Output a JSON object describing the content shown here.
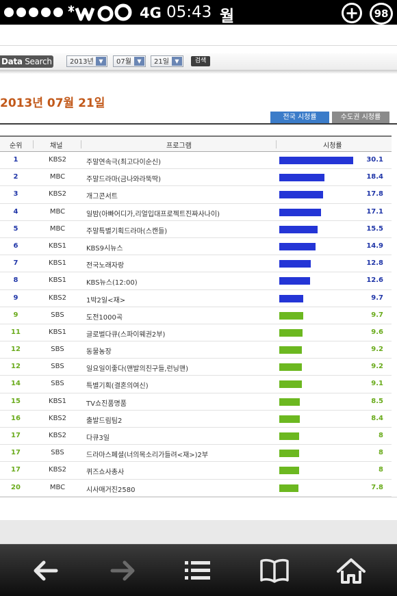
{
  "status_bar": {
    "network": "4G",
    "time": "05:43",
    "extra_char": "월",
    "badge_count": "98"
  },
  "search": {
    "logo_bold": "Data",
    "logo_rest": " Search",
    "year": "2013년",
    "month": "07월",
    "day": "21일",
    "button": "검색"
  },
  "page_title": "2013년 07월 21일",
  "tabs": {
    "national": "전국 시청률",
    "capital": "수도권 시청률"
  },
  "table": {
    "headers": {
      "rank": "순위",
      "channel": "채널",
      "program": "프로그램",
      "rating": "시청률"
    },
    "rows": [
      {
        "rank": "1",
        "channel": "KBS2",
        "program": "주말연속극(최고다이순신)",
        "rating": "30.1",
        "value": 30.1,
        "color": "blue"
      },
      {
        "rank": "2",
        "channel": "MBC",
        "program": "주말드라마(금나와라뚝딱)",
        "rating": "18.4",
        "value": 18.4,
        "color": "blue"
      },
      {
        "rank": "3",
        "channel": "KBS2",
        "program": "개그콘서트",
        "rating": "17.8",
        "value": 17.8,
        "color": "blue"
      },
      {
        "rank": "4",
        "channel": "MBC",
        "program": "일밤(아빠어디가,리얼입대프로젝트진짜사나이)",
        "rating": "17.1",
        "value": 17.1,
        "color": "blue"
      },
      {
        "rank": "5",
        "channel": "MBC",
        "program": "주말특별기획드라마(스캔들)",
        "rating": "15.5",
        "value": 15.5,
        "color": "blue"
      },
      {
        "rank": "6",
        "channel": "KBS1",
        "program": "KBS9시뉴스",
        "rating": "14.9",
        "value": 14.9,
        "color": "blue"
      },
      {
        "rank": "7",
        "channel": "KBS1",
        "program": "전국노래자랑",
        "rating": "12.8",
        "value": 12.8,
        "color": "blue"
      },
      {
        "rank": "8",
        "channel": "KBS1",
        "program": "KBS뉴스(12:00)",
        "rating": "12.6",
        "value": 12.6,
        "color": "blue"
      },
      {
        "rank": "9",
        "channel": "KBS2",
        "program": "1박2일<재>",
        "rating": "9.7",
        "value": 9.7,
        "color": "blue"
      },
      {
        "rank": "9",
        "channel": "SBS",
        "program": "도전1000곡",
        "rating": "9.7",
        "value": 9.7,
        "color": "green"
      },
      {
        "rank": "11",
        "channel": "KBS1",
        "program": "글로벌다큐(스파이웨권2부)",
        "rating": "9.6",
        "value": 9.6,
        "color": "green"
      },
      {
        "rank": "12",
        "channel": "SBS",
        "program": "동물농장",
        "rating": "9.2",
        "value": 9.2,
        "color": "green"
      },
      {
        "rank": "12",
        "channel": "SBS",
        "program": "일요일이좋다(맨발의친구들,런닝맨)",
        "rating": "9.2",
        "value": 9.2,
        "color": "green"
      },
      {
        "rank": "14",
        "channel": "SBS",
        "program": "특별기획(결혼의여신)",
        "rating": "9.1",
        "value": 9.1,
        "color": "green"
      },
      {
        "rank": "15",
        "channel": "KBS1",
        "program": "TV쇼진품명품",
        "rating": "8.5",
        "value": 8.5,
        "color": "green"
      },
      {
        "rank": "16",
        "channel": "KBS2",
        "program": "출발드림팀2",
        "rating": "8.4",
        "value": 8.4,
        "color": "green"
      },
      {
        "rank": "17",
        "channel": "KBS2",
        "program": "다큐3일",
        "rating": "8",
        "value": 8,
        "color": "green"
      },
      {
        "rank": "17",
        "channel": "SBS",
        "program": "드라마스페셜(너의목소리가들려<재>)2부",
        "rating": "8",
        "value": 8,
        "color": "green"
      },
      {
        "rank": "17",
        "channel": "KBS2",
        "program": "퀴즈쇼사총사",
        "rating": "8",
        "value": 8,
        "color": "green"
      },
      {
        "rank": "20",
        "channel": "MBC",
        "program": "시사매거진2580",
        "rating": "7.8",
        "value": 7.8,
        "color": "green"
      }
    ]
  },
  "colors": {
    "blue_bar": "#2435d6",
    "green_bar": "#6cb820",
    "title_orange": "#c2591a",
    "active_tab": "#3b7cc9"
  },
  "navbar_icons": [
    "back-arrow-icon",
    "forward-arrow-icon",
    "menu-list-icon",
    "bookmarks-book-icon",
    "home-icon"
  ]
}
